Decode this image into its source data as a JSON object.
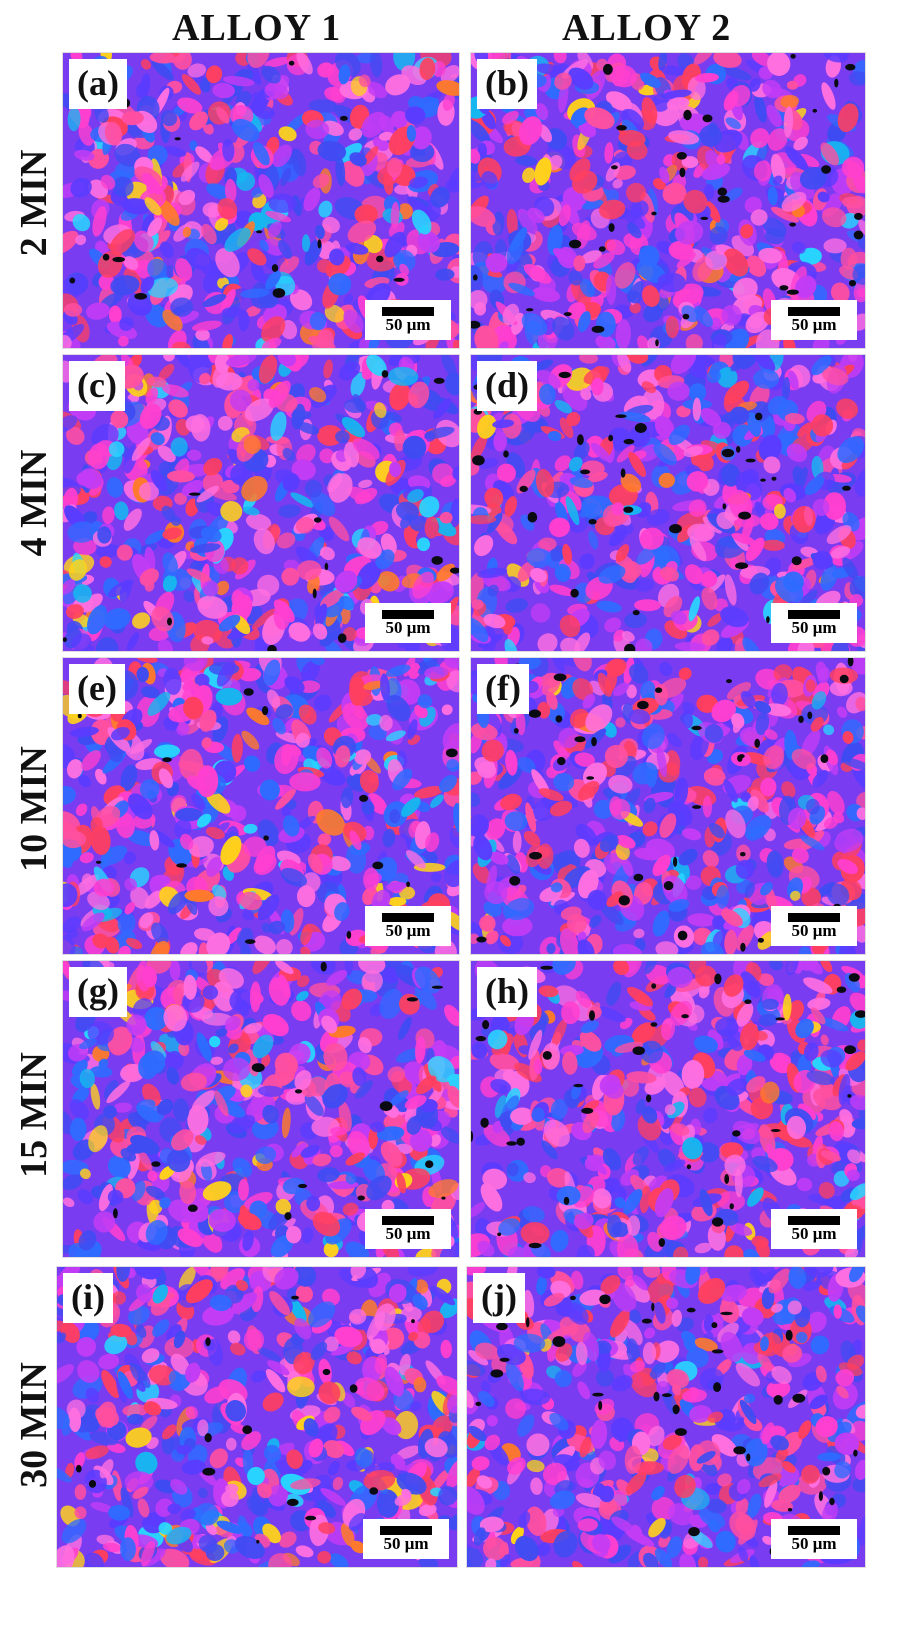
{
  "columns": [
    "ALLOY 1",
    "ALLOY 2"
  ],
  "rows": [
    "2 MIN",
    "4 MIN",
    "10 MIN",
    "15 MIN",
    "30 MIN"
  ],
  "panels": [
    {
      "label": "(a)",
      "scale": "50 μm"
    },
    {
      "label": "(b)",
      "scale": "50 μm"
    },
    {
      "label": "(c)",
      "scale": "50 μm"
    },
    {
      "label": "(d)",
      "scale": "50 μm"
    },
    {
      "label": "(e)",
      "scale": "50 μm"
    },
    {
      "label": "(f)",
      "scale": "50 μm"
    },
    {
      "label": "(g)",
      "scale": "50 μm"
    },
    {
      "label": "(h)",
      "scale": "50 μm"
    },
    {
      "label": "(i)",
      "scale": "50 μm"
    },
    {
      "label": "(j)",
      "scale": "50 μm"
    }
  ],
  "palette": {
    "base": "#7a3cf0",
    "grain_colors": [
      "#ff3fd0",
      "#ff4fa0",
      "#3f4cf2",
      "#5a3cff",
      "#c23cf5",
      "#ff3f5f",
      "#2f6bff",
      "#ff6fe0"
    ],
    "accent_colors": [
      "#ff7a2a",
      "#ffd21a",
      "#28d6ff",
      "#16b6f0"
    ],
    "pore": "#0a0a12"
  }
}
